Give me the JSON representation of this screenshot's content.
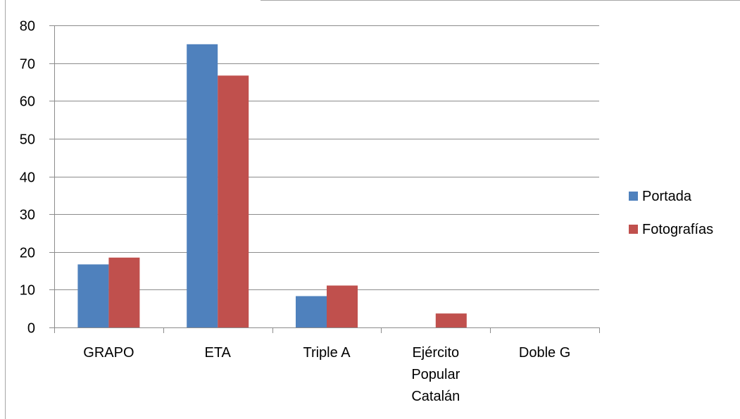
{
  "chart_data": {
    "type": "bar",
    "title": "",
    "xlabel": "",
    "ylabel": "",
    "categories": [
      "GRAPO",
      "ETA",
      "Triple A",
      "Ejército Popular Catalán",
      "Doble G"
    ],
    "category_lines": [
      [
        "GRAPO"
      ],
      [
        "ETA"
      ],
      [
        "Triple A"
      ],
      [
        "Ejército",
        "Popular",
        "Catalán"
      ],
      [
        "Doble G"
      ]
    ],
    "series": [
      {
        "name": "Portada",
        "color": "#4F81BD",
        "values": [
          16.7,
          75.0,
          8.3,
          0,
          0
        ]
      },
      {
        "name": "Fotografías",
        "color": "#C0504D",
        "values": [
          18.5,
          66.7,
          11.1,
          3.7,
          0
        ]
      }
    ],
    "ylim": [
      0,
      80
    ],
    "y_ticks": [
      "0",
      "10",
      "20",
      "30",
      "40",
      "50",
      "60",
      "70",
      "80"
    ],
    "grid": true,
    "legend_position": "right"
  }
}
